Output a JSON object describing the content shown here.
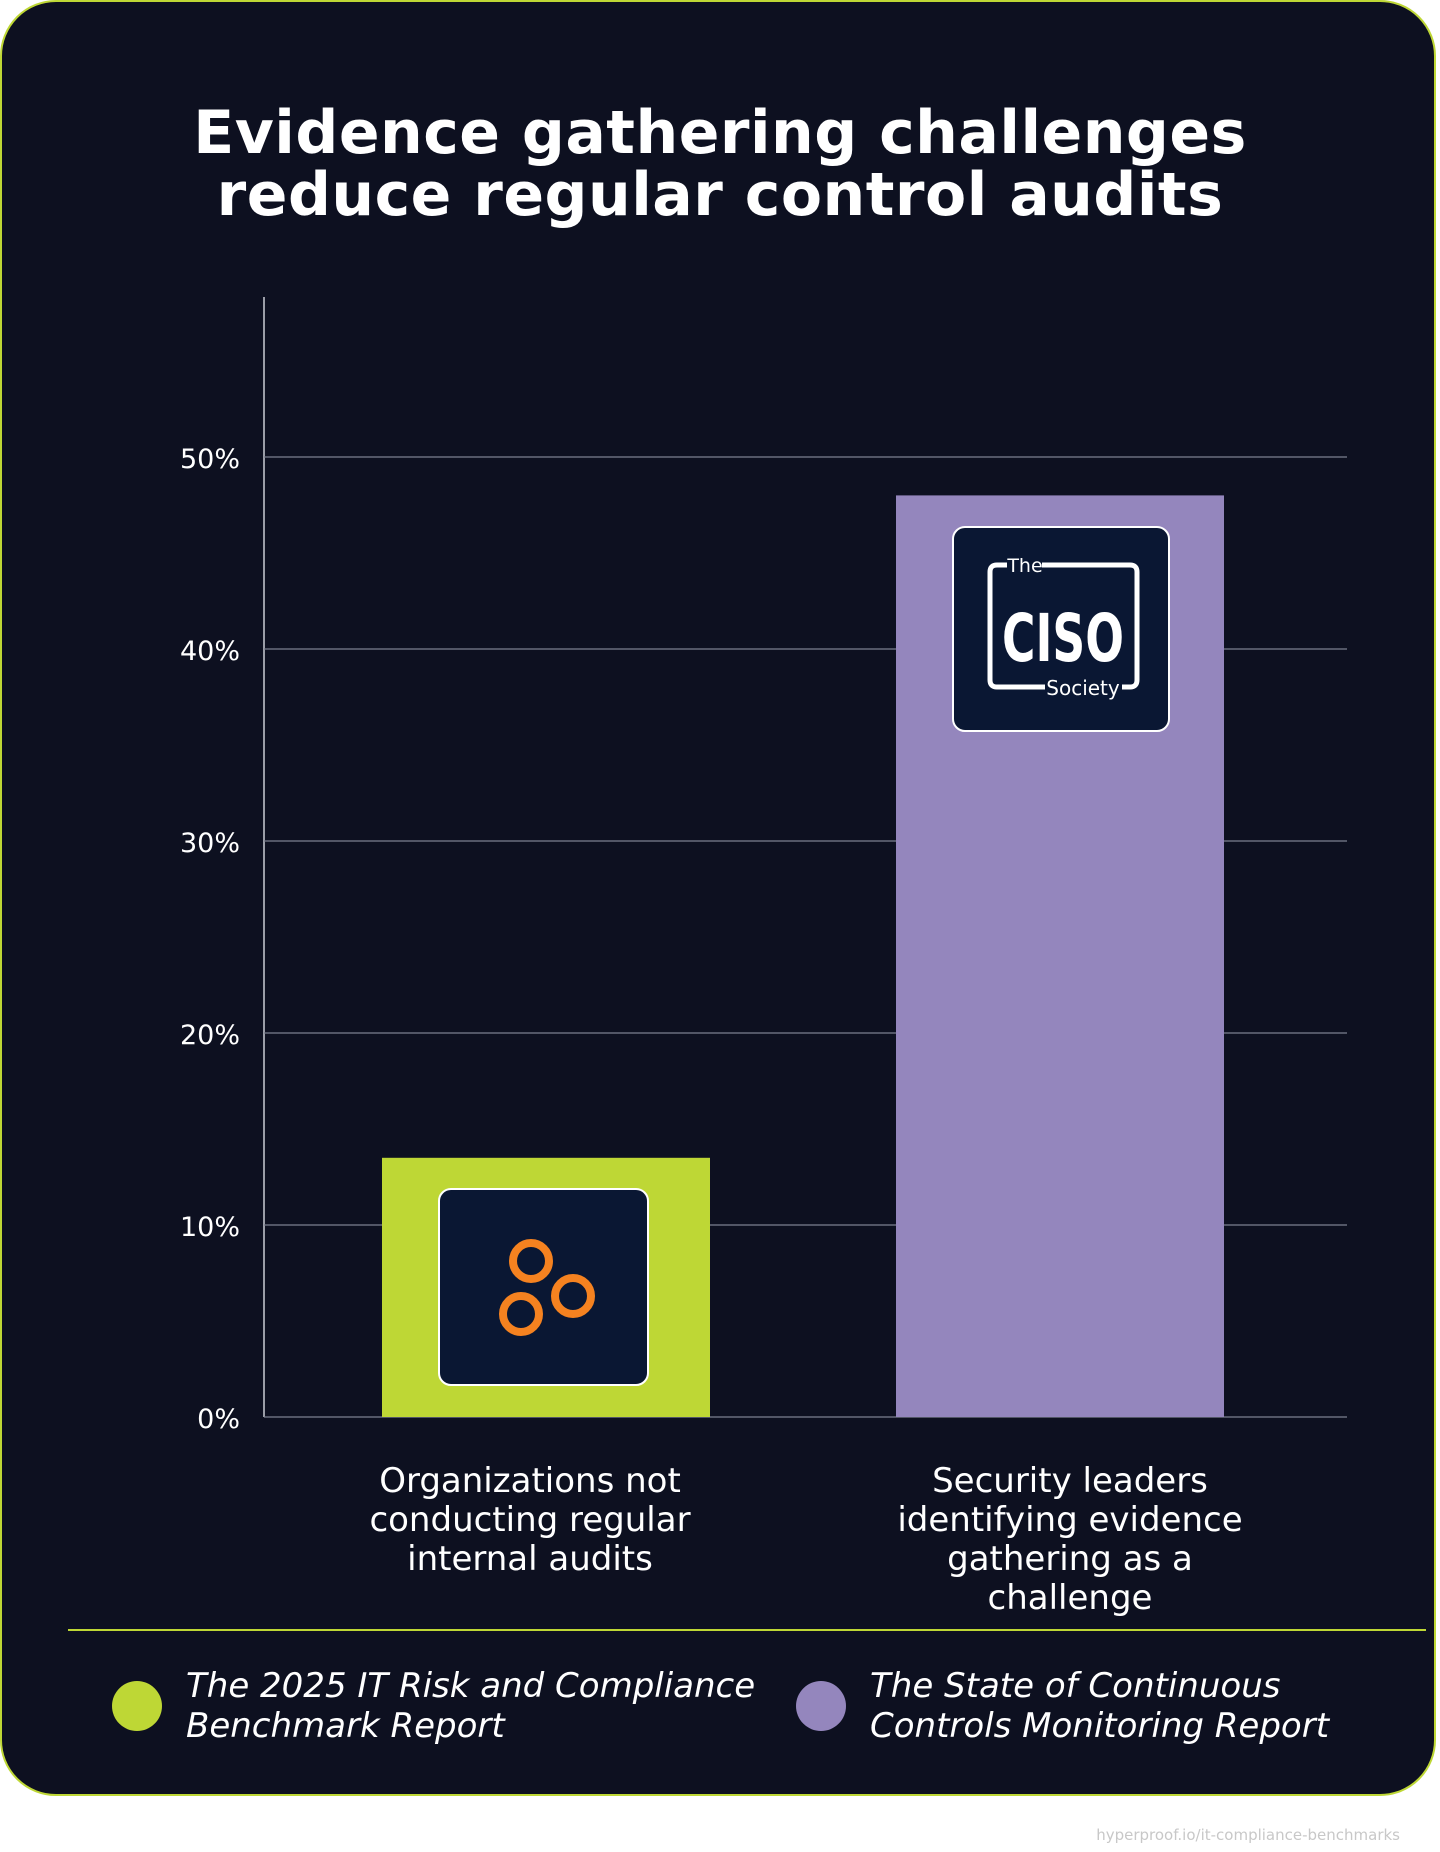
{
  "chart_data": {
    "type": "bar",
    "title": "Evidence gathering challenges reduce regular control audits",
    "title_lines": [
      "Evidence gathering challenges",
      "reduce regular control audits"
    ],
    "categories": [
      "Organizations not conducting regular internal audits",
      "Security leaders identifying evidence gathering as a challenge"
    ],
    "category_lines": [
      "Organizations not\nconducting regular\ninternal audits",
      "Security leaders\nidentifying evidence\ngathering as a challenge"
    ],
    "values": [
      13.5,
      48
    ],
    "value_unit": "%",
    "bar_colors": [
      "#bed735",
      "#9486bd"
    ],
    "ylim": [
      0,
      50
    ],
    "yticks": [
      0,
      10,
      20,
      30,
      40,
      50
    ],
    "ytick_labels": [
      "0%",
      "10%",
      "20%",
      "30%",
      "40%",
      "50%"
    ],
    "grid": true,
    "xlabel": "",
    "ylabel": "",
    "logos": [
      {
        "icon": "three-rings-logo-icon",
        "color": "#f58220"
      },
      {
        "icon": "ciso-society-logo-icon",
        "text_small_top": "The",
        "text_main": "CISO",
        "text_small_bottom": "Society"
      }
    ],
    "legend": {
      "placement": "bottom",
      "entries": [
        {
          "label": "The 2025 IT Risk and Compliance\nBenchmark Report",
          "color": "#bed735"
        },
        {
          "label": "The State of Continuous\nControls Monitoring Report",
          "color": "#9486bd"
        }
      ]
    }
  },
  "colors": {
    "background": "#0d1020",
    "accent": "#bed735",
    "purple": "#9486bd",
    "logo_box": "#0a1733",
    "grid": "#7d8190",
    "text": "#ffffff"
  },
  "footer": {
    "url": "hyperproof.io/it-compliance-benchmarks"
  }
}
